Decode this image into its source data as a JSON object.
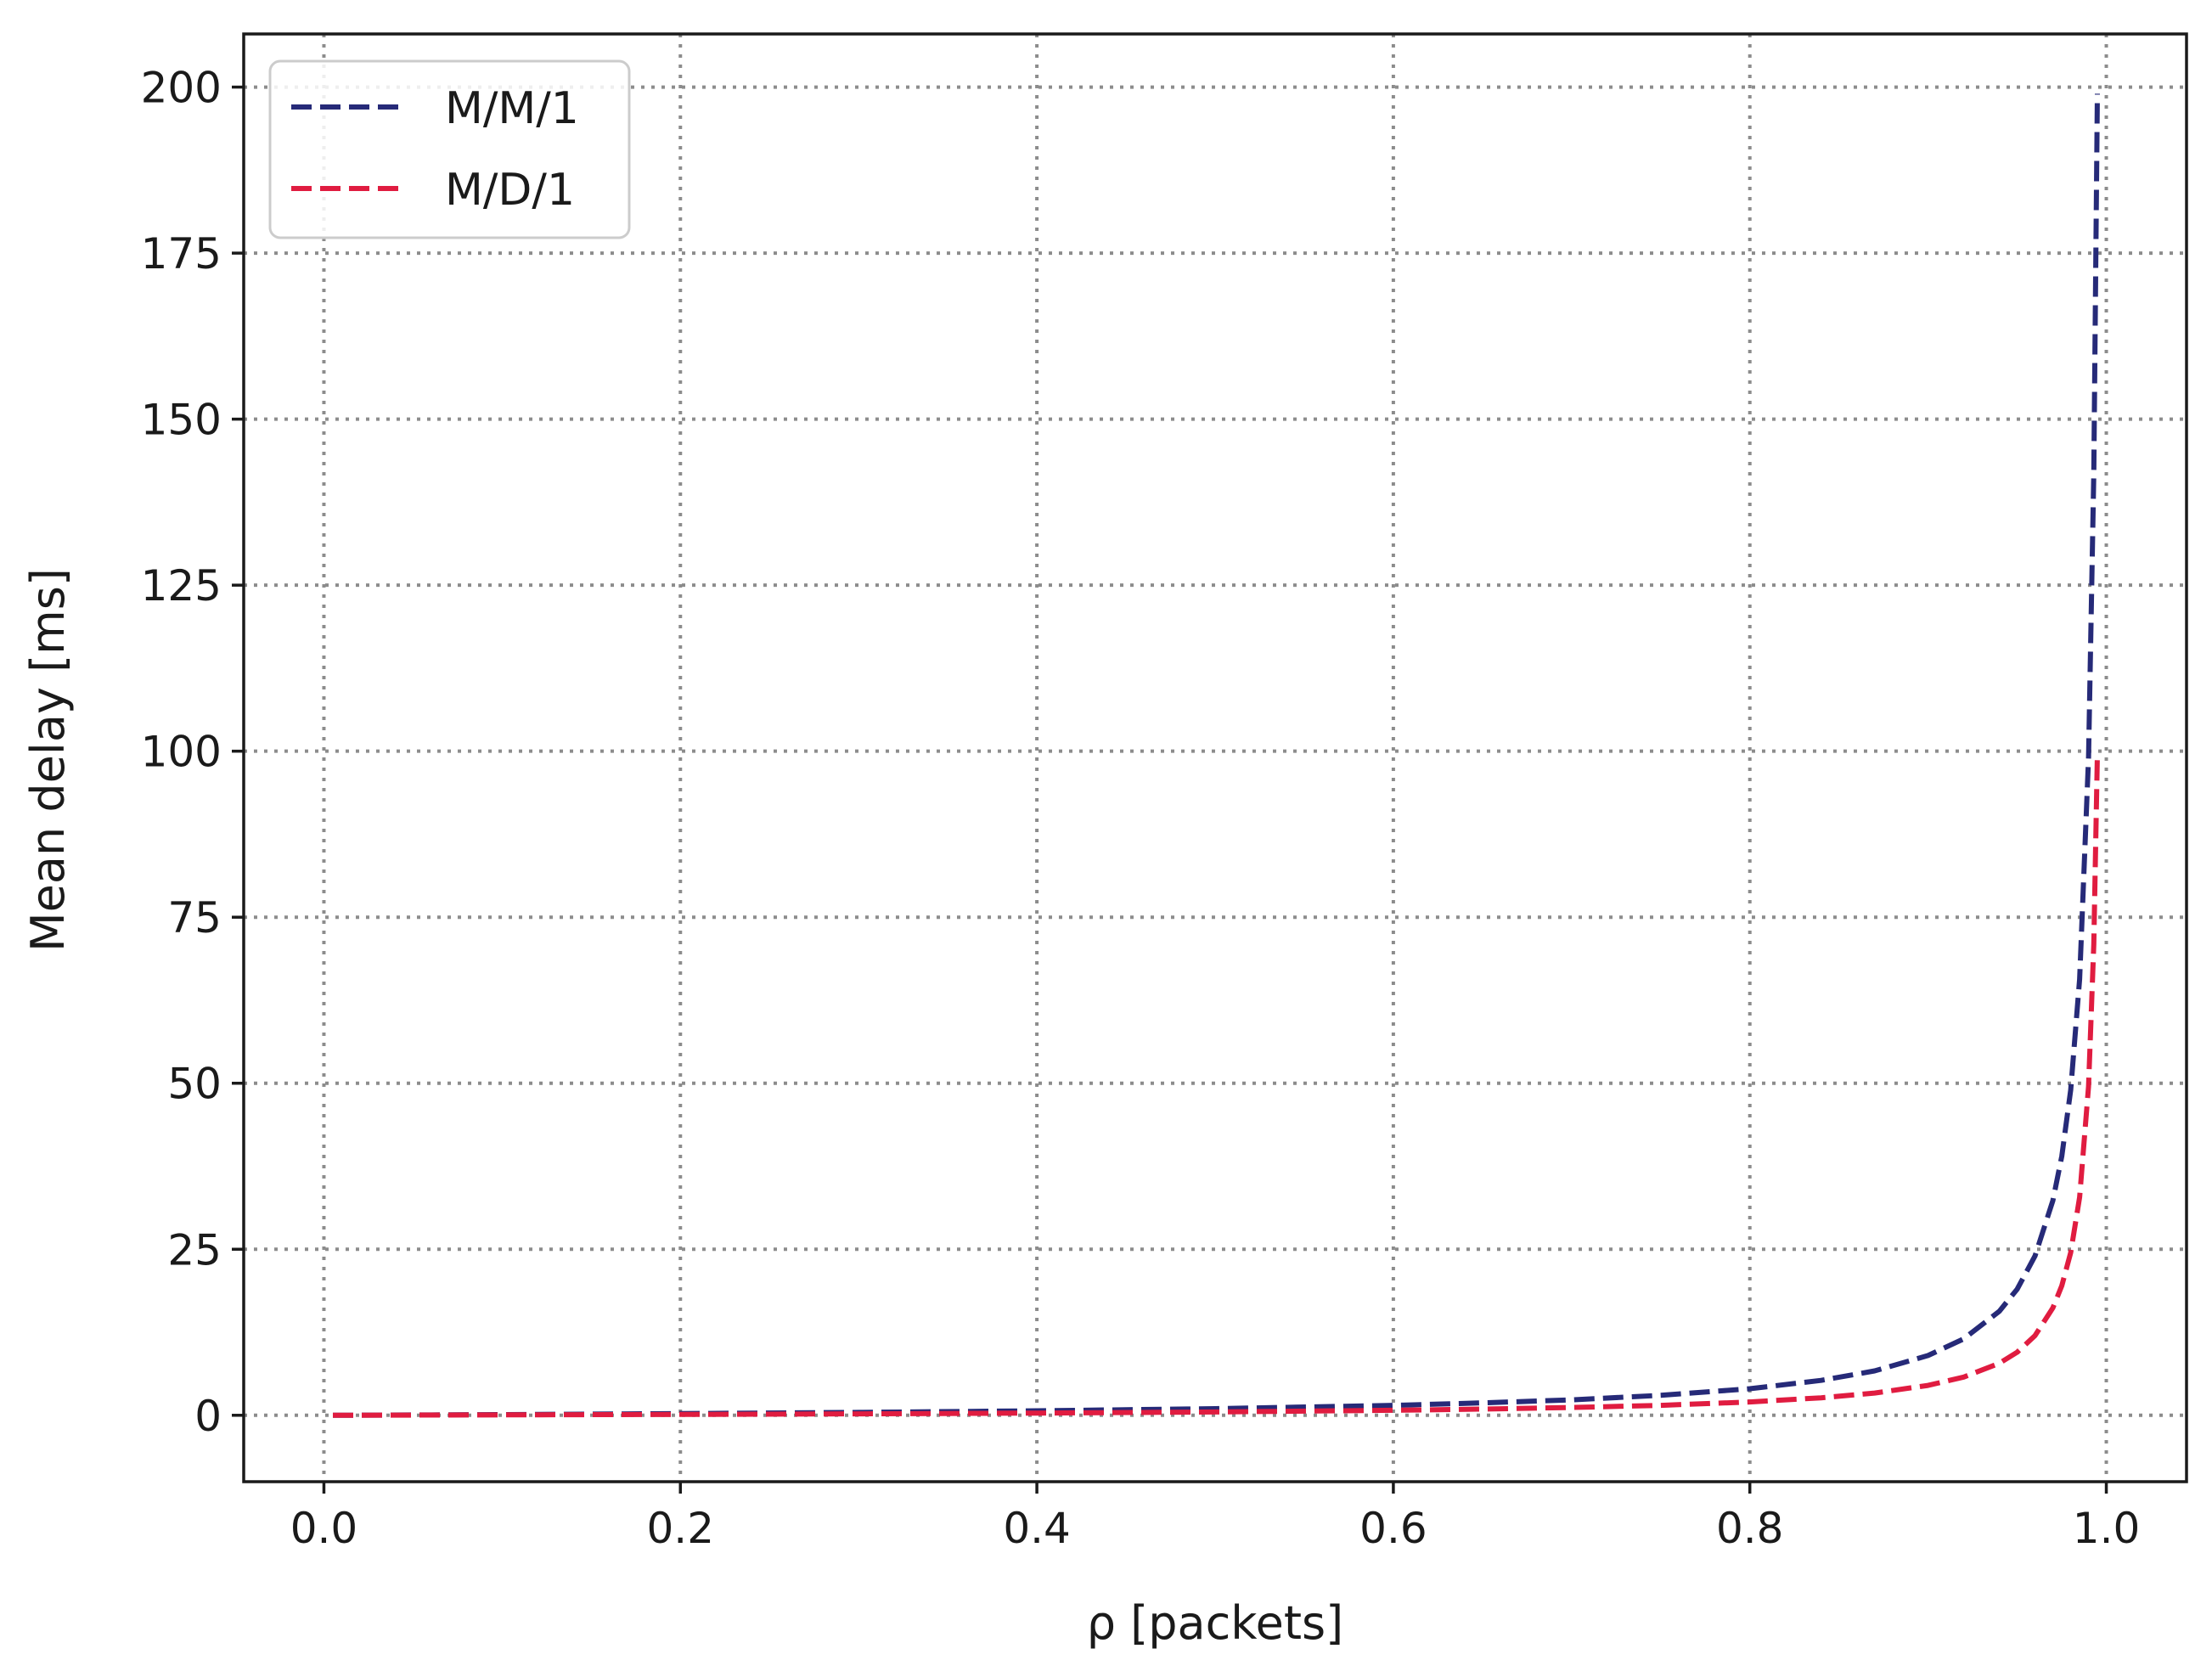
{
  "chart_data": {
    "type": "line",
    "title": "",
    "xlabel": "ρ [packets]",
    "ylabel": "Mean delay [ms]",
    "xlim": [
      -0.045,
      1.045
    ],
    "ylim": [
      -10,
      208
    ],
    "xticks": [
      0.0,
      0.2,
      0.4,
      0.6,
      0.8,
      1.0
    ],
    "xtick_labels": [
      "0.0",
      "0.2",
      "0.4",
      "0.6",
      "0.8",
      "1.0"
    ],
    "yticks": [
      0,
      25,
      50,
      75,
      100,
      125,
      150,
      175,
      200
    ],
    "ytick_labels": [
      "0",
      "25",
      "50",
      "75",
      "100",
      "125",
      "150",
      "175",
      "200"
    ],
    "grid": true,
    "legend_position": "top-left",
    "series": [
      {
        "name": "M/M/1",
        "color": "#262a78",
        "line_style": "dashed",
        "x": [
          0.005,
          0.1,
          0.2,
          0.3,
          0.4,
          0.5,
          0.6,
          0.65,
          0.7,
          0.75,
          0.8,
          0.84,
          0.87,
          0.9,
          0.92,
          0.94,
          0.95,
          0.96,
          0.97,
          0.975,
          0.98,
          0.985,
          0.99,
          0.993,
          0.995
        ],
        "y": [
          0.0,
          0.1,
          0.25,
          0.43,
          0.67,
          1.0,
          1.5,
          1.86,
          2.33,
          3.0,
          4.0,
          5.25,
          6.69,
          9.0,
          11.5,
          15.67,
          19.0,
          24.0,
          32.33,
          39.0,
          49.0,
          65.67,
          99.0,
          141.86,
          199.0
        ]
      },
      {
        "name": "M/D/1",
        "color": "#e01c40",
        "line_style": "dashed",
        "x": [
          0.005,
          0.1,
          0.2,
          0.3,
          0.4,
          0.5,
          0.6,
          0.65,
          0.7,
          0.75,
          0.8,
          0.84,
          0.87,
          0.9,
          0.92,
          0.94,
          0.95,
          0.96,
          0.97,
          0.975,
          0.98,
          0.985,
          0.99,
          0.993,
          0.995
        ],
        "y": [
          0.0,
          0.06,
          0.13,
          0.21,
          0.33,
          0.5,
          0.75,
          0.93,
          1.17,
          1.5,
          2.0,
          2.63,
          3.35,
          4.5,
          5.75,
          7.83,
          9.5,
          12.0,
          16.17,
          19.5,
          24.5,
          32.83,
          49.5,
          70.93,
          99.5
        ]
      }
    ]
  }
}
